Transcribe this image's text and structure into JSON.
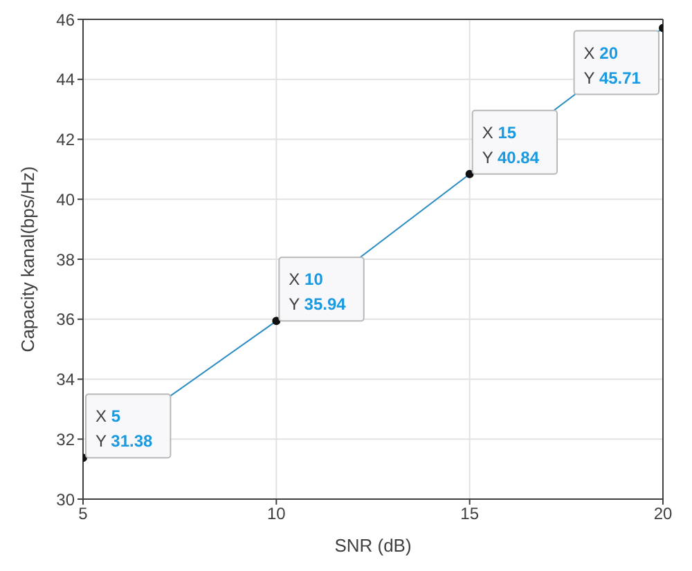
{
  "chart_data": {
    "type": "line",
    "xlabel": "SNR (dB)",
    "ylabel": "Capacity kanal(bps/Hz)",
    "x": [
      5,
      10,
      15,
      20
    ],
    "series": [
      {
        "color": "#2b8cc4",
        "values": [
          31.38,
          35.94,
          40.84,
          45.71
        ]
      }
    ],
    "xlim": [
      5,
      20
    ],
    "xticks": [
      5,
      10,
      15,
      20
    ],
    "ylim": [
      30,
      46
    ],
    "yticks": [
      30,
      32,
      34,
      36,
      38,
      40,
      42,
      44,
      46
    ],
    "grid": true,
    "marker": "circle",
    "annotations": [
      {
        "text": "X 5\nY 31.38",
        "x": 5,
        "y": 31.38
      },
      {
        "text": "X 10\nY 35.94",
        "x": 10,
        "y": 35.94
      },
      {
        "text": "X 15\nY 40.84",
        "x": 15,
        "y": 40.84
      },
      {
        "text": "X 20\nY 45.71",
        "x": 20,
        "y": 45.71
      }
    ]
  }
}
